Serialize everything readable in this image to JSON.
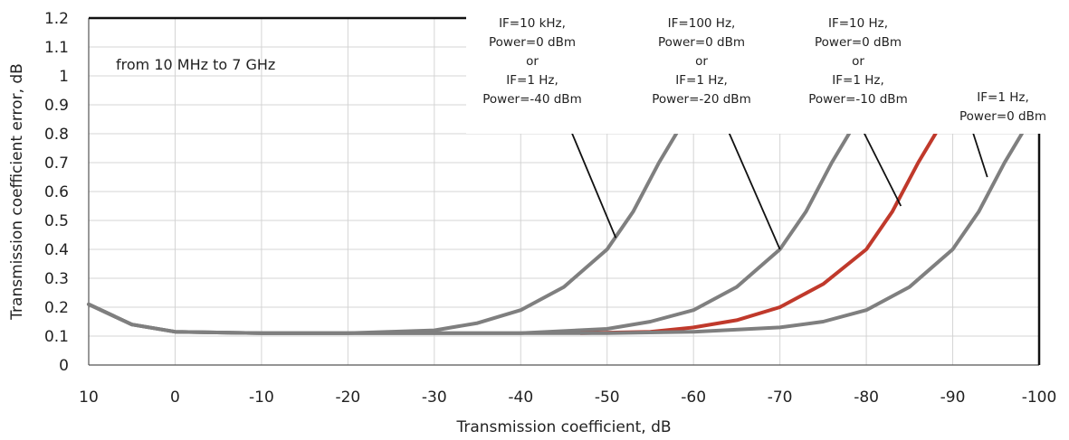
{
  "chart_data": {
    "type": "line",
    "title": "",
    "xlabel": "Transmission coefficient, dB",
    "ylabel": "Transmission coefficient error, dB",
    "xlim": [
      10,
      -100
    ],
    "ylim": [
      0,
      1.2
    ],
    "x_ticks": [
      "10",
      "0",
      "-10",
      "-20",
      "-30",
      "-40",
      "-50",
      "-60",
      "-70",
      "-80",
      "-90",
      "-100"
    ],
    "y_ticks": [
      "0",
      "0.1",
      "0.2",
      "0.3",
      "0.4",
      "0.5",
      "0.6",
      "0.7",
      "0.8",
      "0.9",
      "1",
      "1.1",
      "1.2"
    ],
    "grid": true,
    "note": "from 10 MHz to 7 GHz",
    "series": [
      {
        "color": "#7f7f7f",
        "x": [
          10,
          5,
          0,
          -10,
          -20,
          -30,
          -35,
          -40,
          -45,
          -50,
          -53,
          -56,
          -58
        ],
        "y": [
          0.21,
          0.14,
          0.115,
          0.11,
          0.11,
          0.12,
          0.145,
          0.19,
          0.27,
          0.4,
          0.53,
          0.7,
          0.8
        ]
      },
      {
        "color": "#7f7f7f",
        "x": [
          10,
          5,
          0,
          -10,
          -20,
          -30,
          -40,
          -50,
          -55,
          -60,
          -65,
          -70,
          -73,
          -76,
          -78
        ],
        "y": [
          0.21,
          0.14,
          0.115,
          0.11,
          0.11,
          0.11,
          0.11,
          0.125,
          0.15,
          0.19,
          0.27,
          0.4,
          0.53,
          0.7,
          0.8
        ]
      },
      {
        "color": "#c0392b",
        "x": [
          -47,
          -55,
          -60,
          -65,
          -70,
          -75,
          -80,
          -83,
          -86,
          -88
        ],
        "y": [
          0.11,
          0.115,
          0.13,
          0.155,
          0.2,
          0.28,
          0.4,
          0.53,
          0.7,
          0.8
        ]
      },
      {
        "color": "#7f7f7f",
        "x": [
          10,
          5,
          0,
          -10,
          -20,
          -30,
          -40,
          -50,
          -60,
          -70,
          -75,
          -80,
          -85,
          -90,
          -93,
          -96,
          -98
        ],
        "y": [
          0.21,
          0.14,
          0.115,
          0.11,
          0.11,
          0.11,
          0.11,
          0.11,
          0.115,
          0.13,
          0.15,
          0.19,
          0.27,
          0.4,
          0.53,
          0.7,
          0.8
        ]
      }
    ],
    "annotations": [
      {
        "lines": [
          "IF=10 kHz,",
          "Power=0 dBm",
          "or",
          "IF=1 Hz,",
          "Power=-40 dBm"
        ],
        "point": [
          -51,
          0.44
        ]
      },
      {
        "lines": [
          "IF=100 Hz,",
          "Power=0 dBm",
          "or",
          "IF=1 Hz,",
          "Power=-20 dBm"
        ],
        "point": [
          -70,
          0.4
        ]
      },
      {
        "lines": [
          "IF=10 Hz,",
          "Power=0 dBm",
          "or",
          "IF=1 Hz,",
          "Power=-10 dBm"
        ],
        "point": [
          -84,
          0.55
        ]
      },
      {
        "lines": [
          "IF=1 Hz,",
          "Power=0 dBm"
        ],
        "point": [
          -94,
          0.65
        ]
      }
    ]
  }
}
